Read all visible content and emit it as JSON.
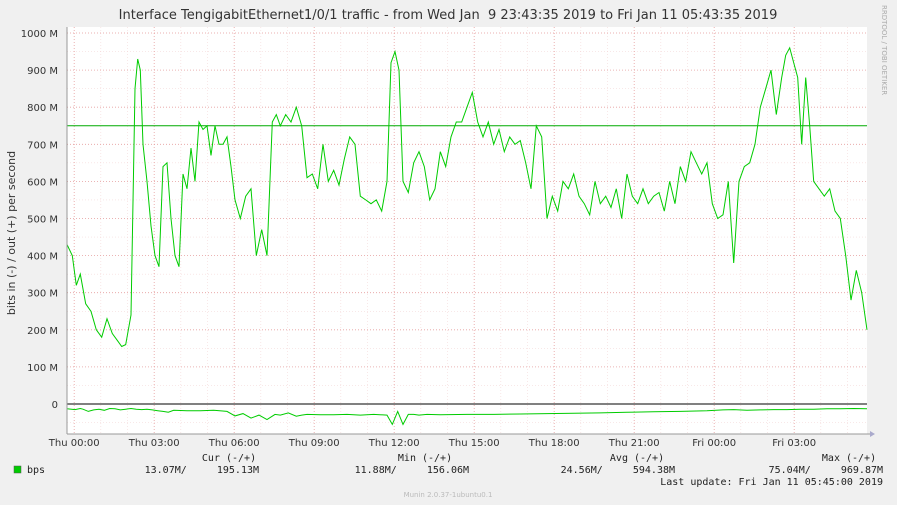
{
  "chart_data": {
    "type": "line",
    "title": "Interface TengigabitEthernet1/0/1 traffic - from Wed Jan  9 23:43:35 2019 to Fri Jan 11 05:43:35 2019",
    "ylabel": "bits in (-) / out (+) per second",
    "watermark": "RRDTOOL / TOBI OETIKER",
    "footer": "Munin 2.0.37-1ubuntu0.1",
    "x_range_hours": [
      0,
      30
    ],
    "ylim": [
      -100,
      1000
    ],
    "x_ticks": [
      {
        "h": 0.27,
        "label": "Thu 00:00"
      },
      {
        "h": 3.27,
        "label": "Thu 03:00"
      },
      {
        "h": 6.27,
        "label": "Thu 06:00"
      },
      {
        "h": 9.27,
        "label": "Thu 09:00"
      },
      {
        "h": 12.27,
        "label": "Thu 12:00"
      },
      {
        "h": 15.27,
        "label": "Thu 15:00"
      },
      {
        "h": 18.27,
        "label": "Thu 18:00"
      },
      {
        "h": 21.27,
        "label": "Thu 21:00"
      },
      {
        "h": 24.27,
        "label": "Fri 00:00"
      },
      {
        "h": 27.27,
        "label": "Fri 03:00"
      }
    ],
    "y_ticks": [
      {
        "v": 0,
        "label": "0"
      },
      {
        "v": 100,
        "label": "100 M"
      },
      {
        "v": 200,
        "label": "200 M"
      },
      {
        "v": 300,
        "label": "300 M"
      },
      {
        "v": 400,
        "label": "400 M"
      },
      {
        "v": 500,
        "label": "500 M"
      },
      {
        "v": 600,
        "label": "600 M"
      },
      {
        "v": 700,
        "label": "700 M"
      },
      {
        "v": 800,
        "label": "800 M"
      },
      {
        "v": 900,
        "label": "900 M"
      },
      {
        "v": 1000,
        "label": "1000 M"
      }
    ],
    "threshold": 750,
    "colors": {
      "series": "#00cc00",
      "threshold": "#00aa00",
      "zero_line": "#000000",
      "grid": "#e6a0a0"
    },
    "series": [
      {
        "name": "bps",
        "direction": "out",
        "x_hours": [
          0.0,
          0.2,
          0.35,
          0.5,
          0.7,
          0.9,
          1.1,
          1.3,
          1.5,
          1.7,
          1.9,
          2.05,
          2.2,
          2.4,
          2.55,
          2.65,
          2.75,
          2.85,
          3.0,
          3.15,
          3.3,
          3.45,
          3.6,
          3.75,
          3.9,
          4.05,
          4.2,
          4.35,
          4.5,
          4.65,
          4.8,
          4.95,
          5.1,
          5.25,
          5.4,
          5.55,
          5.7,
          5.85,
          6.0,
          6.15,
          6.3,
          6.5,
          6.7,
          6.9,
          7.1,
          7.3,
          7.5,
          7.7,
          7.85,
          8.0,
          8.2,
          8.4,
          8.6,
          8.8,
          9.0,
          9.2,
          9.4,
          9.6,
          9.8,
          10.0,
          10.2,
          10.4,
          10.6,
          10.8,
          11.0,
          11.2,
          11.4,
          11.6,
          11.8,
          12.0,
          12.15,
          12.3,
          12.45,
          12.6,
          12.8,
          13.0,
          13.2,
          13.4,
          13.6,
          13.8,
          14.0,
          14.2,
          14.4,
          14.6,
          14.8,
          15.0,
          15.2,
          15.4,
          15.6,
          15.8,
          16.0,
          16.2,
          16.4,
          16.6,
          16.8,
          17.0,
          17.2,
          17.4,
          17.6,
          17.8,
          18.0,
          18.2,
          18.4,
          18.6,
          18.8,
          19.0,
          19.2,
          19.4,
          19.6,
          19.8,
          20.0,
          20.2,
          20.4,
          20.6,
          20.8,
          21.0,
          21.2,
          21.4,
          21.6,
          21.8,
          22.0,
          22.2,
          22.4,
          22.6,
          22.8,
          23.0,
          23.2,
          23.4,
          23.6,
          23.8,
          24.0,
          24.2,
          24.4,
          24.6,
          24.8,
          25.0,
          25.2,
          25.4,
          25.6,
          25.8,
          26.0,
          26.2,
          26.4,
          26.6,
          26.8,
          26.95,
          27.1,
          27.25,
          27.4,
          27.55,
          27.7,
          27.85,
          28.0,
          28.2,
          28.4,
          28.6,
          28.8,
          29.0,
          29.2,
          29.4,
          29.6,
          29.8,
          30.0
        ],
        "values": [
          430,
          400,
          320,
          350,
          270,
          250,
          200,
          180,
          230,
          190,
          170,
          155,
          160,
          240,
          850,
          930,
          900,
          700,
          600,
          480,
          400,
          370,
          640,
          650,
          500,
          400,
          370,
          620,
          580,
          690,
          600,
          760,
          740,
          750,
          670,
          750,
          700,
          700,
          720,
          640,
          550,
          500,
          560,
          580,
          400,
          470,
          400,
          760,
          780,
          750,
          780,
          760,
          800,
          750,
          610,
          620,
          580,
          700,
          600,
          630,
          590,
          660,
          720,
          700,
          560,
          550,
          540,
          550,
          520,
          600,
          920,
          950,
          900,
          600,
          570,
          650,
          680,
          640,
          550,
          580,
          680,
          640,
          720,
          760,
          760,
          800,
          840,
          760,
          720,
          760,
          700,
          740,
          680,
          720,
          700,
          710,
          650,
          580,
          750,
          720,
          500,
          560,
          520,
          600,
          580,
          620,
          560,
          540,
          510,
          600,
          540,
          560,
          530,
          580,
          500,
          620,
          560,
          540,
          580,
          540,
          560,
          570,
          520,
          600,
          540,
          640,
          600,
          680,
          650,
          620,
          650,
          540,
          500,
          510,
          600,
          380,
          600,
          640,
          650,
          700,
          800,
          850,
          900,
          780,
          880,
          940,
          960,
          920,
          880,
          700,
          880,
          750,
          600,
          580,
          560,
          580,
          520,
          500,
          400,
          280,
          360,
          300,
          200
        ],
        "cur": "195.13M",
        "min": "156.06M",
        "avg": "594.38M",
        "max": "969.87M"
      },
      {
        "name": "bps",
        "direction": "in",
        "x_hours": [
          0.0,
          0.3,
          0.5,
          0.6,
          0.8,
          1.0,
          1.2,
          1.4,
          1.6,
          1.8,
          2.0,
          2.2,
          2.4,
          2.6,
          2.8,
          3.0,
          3.2,
          3.4,
          3.6,
          3.8,
          4.0,
          4.5,
          5.0,
          5.5,
          6.0,
          6.3,
          6.6,
          6.9,
          7.2,
          7.5,
          7.8,
          8.0,
          8.3,
          8.6,
          8.8,
          9.0,
          9.5,
          10.0,
          10.5,
          11.0,
          11.5,
          12.0,
          12.2,
          12.4,
          12.6,
          12.8,
          13.0,
          13.2,
          13.5,
          14.0,
          15.0,
          16.0,
          17.0,
          18.0,
          19.0,
          20.0,
          21.0,
          22.0,
          23.0,
          24.0,
          24.6,
          25.0,
          25.5,
          26.0,
          26.5,
          27.0,
          27.5,
          28.0,
          28.5,
          29.0,
          29.5,
          30.0
        ],
        "values": [
          -13,
          -15,
          -12,
          -14,
          -20,
          -16,
          -14,
          -17,
          -12,
          -13,
          -16,
          -14,
          -12,
          -14,
          -15,
          -14,
          -16,
          -18,
          -20,
          -22,
          -17,
          -18,
          -18,
          -17,
          -20,
          -32,
          -26,
          -38,
          -30,
          -42,
          -28,
          -30,
          -24,
          -33,
          -30,
          -28,
          -29,
          -29,
          -28,
          -30,
          -28,
          -30,
          -55,
          -20,
          -55,
          -28,
          -28,
          -30,
          -28,
          -29,
          -28,
          -28,
          -27,
          -26,
          -25,
          -24,
          -22,
          -21,
          -20,
          -18,
          -16,
          -15,
          -17,
          -16,
          -15,
          -15,
          -14,
          -14,
          -13,
          -13,
          -12,
          -13
        ],
        "cur": "13.07M",
        "min": "11.88M",
        "avg": "24.56M",
        "max": "75.04M"
      }
    ]
  },
  "legend": {
    "headers": {
      "cur": "Cur (-/+)",
      "min": "Min (-/+)",
      "avg": "Avg (-/+)",
      "max": "Max (-/+)"
    },
    "series_label": "bps",
    "swatch_color": "#00cc00",
    "cur": "13.07M/     195.13M",
    "min": "11.88M/     156.06M",
    "avg": "24.56M/     594.38M",
    "max": "75.04M/     969.87M",
    "last_update": "Last update: Fri Jan 11 05:45:00 2019"
  }
}
